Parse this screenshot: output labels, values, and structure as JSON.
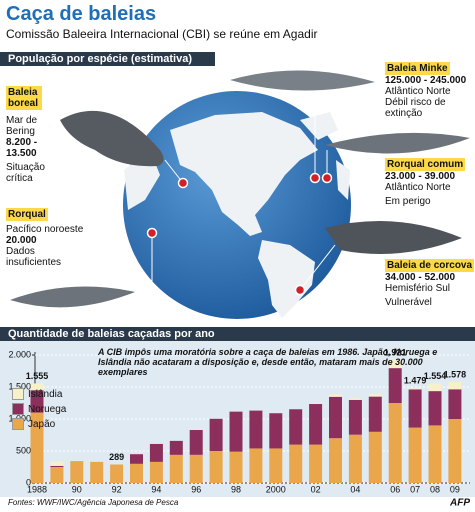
{
  "header": {
    "title": "Caça de baleias",
    "subtitle": "Comissão Baleeira Internacional (CBI) se reúne em Agadir"
  },
  "map_section": {
    "heading": "População por espécie (estimativa)",
    "species": [
      {
        "name": "Baleia boreal",
        "region": "Mar de Bering",
        "population": "8.200 - 13.500",
        "status": "Situação crítica"
      },
      {
        "name": "Baleia Minke",
        "population": "125.000 - 245.000",
        "region": "Atlântico Norte",
        "status": "Débil risco de extinção"
      },
      {
        "name": "Rorqual comum",
        "population": "23.000 - 39.000",
        "region": "Atlântico Norte",
        "status": "Em perigo"
      },
      {
        "name": "Rorqual",
        "region": "Pacífico noroeste",
        "population": "20.000",
        "status": "Dados insuficientes"
      },
      {
        "name": "Baleia de corcova",
        "population": "34.000 - 52.000",
        "region": "Hemisfério Sul",
        "status": "Vulnerável"
      }
    ]
  },
  "chart_data": {
    "type": "stacked_bar",
    "title": "Quantidade de baleias caçadas por ano",
    "annotation": "A CIB impôs uma moratória sobre a caça de baleias em 1986. Japão, Noruega e Islândia não acataram a disposição e, desde então, mataram mais de 30.000 exemplares",
    "categories": [
      "1988",
      null,
      "90",
      null,
      "92",
      null,
      "94",
      null,
      "96",
      null,
      "98",
      null,
      "2000",
      null,
      "02",
      null,
      "04",
      null,
      "06",
      "07",
      "08",
      "09"
    ],
    "series": [
      {
        "name": "Islândia",
        "color": "#f6f1c9",
        "values": [
          105,
          68,
          0,
          0,
          0,
          0,
          0,
          0,
          0,
          0,
          0,
          0,
          0,
          0,
          0,
          36,
          25,
          39,
          126,
          16,
          118,
          114
        ]
      },
      {
        "name": "Noruega",
        "color": "#8c2f5c",
        "values": [
          350,
          17,
          5,
          0,
          0,
          150,
          280,
          218,
          388,
          503,
          625,
          591,
          550,
          552,
          634,
          647,
          544,
          550,
          545,
          597,
          536,
          464
        ]
      },
      {
        "name": "Japão",
        "color": "#e9a64b",
        "values": [
          1100,
          250,
          330,
          330,
          289,
          300,
          330,
          440,
          440,
          500,
          490,
          540,
          540,
          600,
          600,
          700,
          755,
          800,
          1250,
          866,
          900,
          1000
        ]
      }
    ],
    "total_labels": [
      {
        "index": 0,
        "value": 1555,
        "label": "1.555"
      },
      {
        "index": 4,
        "value": 289,
        "label": "289"
      },
      {
        "index": 18,
        "value": 1921,
        "label": "1.921"
      },
      {
        "index": 19,
        "value": 1479,
        "label": "1.479"
      },
      {
        "index": 20,
        "value": 1554,
        "label": "1.554"
      },
      {
        "index": 21,
        "value": 1578,
        "label": "1.578"
      }
    ],
    "ylim": [
      0,
      2000
    ],
    "yticks": [
      0,
      500,
      {
        "value": 1000,
        "label": "1.000"
      },
      {
        "value": 1500,
        "label": "1.500"
      },
      {
        "value": 2000,
        "label": "2.000"
      }
    ],
    "grid": true,
    "legend": "left"
  },
  "footer": {
    "source": "Fontes: WWF/IWC/Agência Japonesa de Pesca",
    "credit": "AFP"
  }
}
